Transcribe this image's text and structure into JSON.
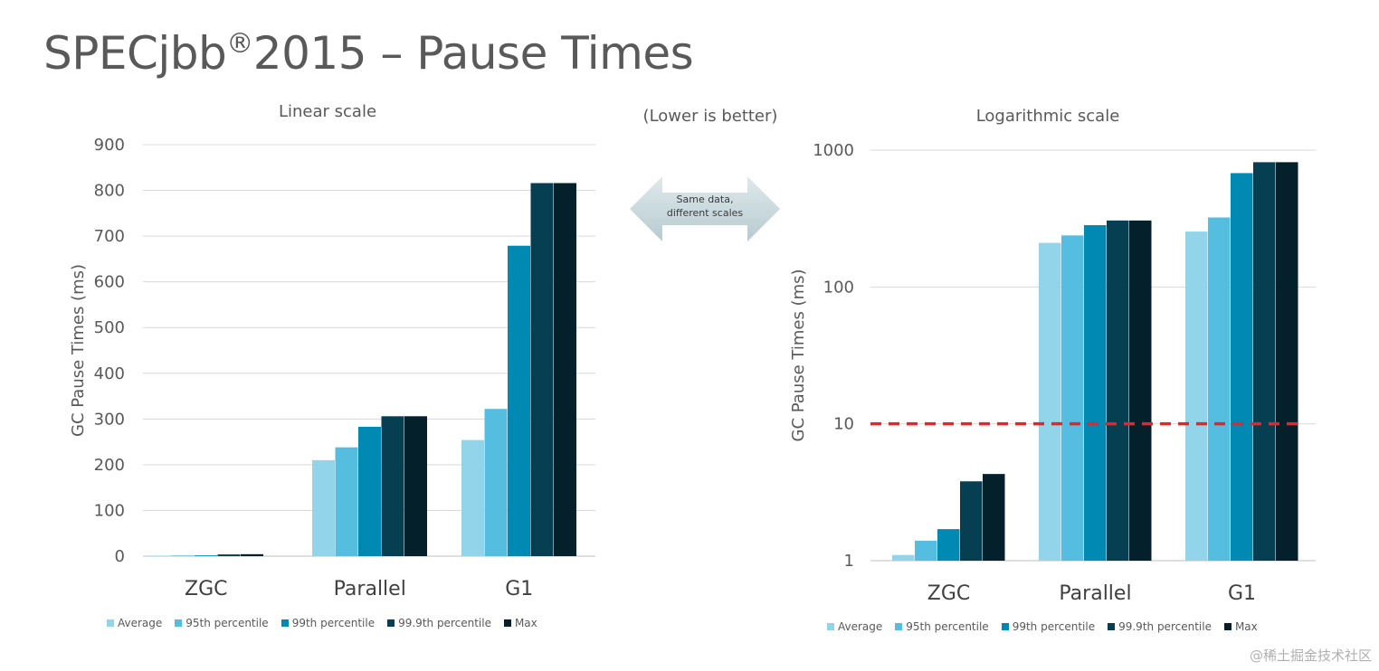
{
  "title": {
    "main": "SPECjbb",
    "reg": "®",
    "rest": "2015 – Pause Times"
  },
  "middle_note": "(Lower is better)",
  "arrow_text": {
    "line1": "Same data,",
    "line2": "different scales"
  },
  "watermark": "@稀土掘金技术社区",
  "colors": {
    "Average": "#92d5ea",
    "95th percentile": "#55bde0",
    "99th percentile": "#0089b3",
    "99.9th percentile": "#063e52",
    "Max": "#04202b",
    "gridline": "#d9d9d9",
    "threshold_line": "#e8242a",
    "arrow_fill": "#c8d8dc"
  },
  "chart_data": [
    {
      "type": "bar",
      "title": "Linear scale",
      "xlabel": "",
      "ylabel": "GC Pause Times (ms)",
      "categories": [
        "ZGC",
        "Parallel",
        "G1"
      ],
      "ylim": [
        0,
        900
      ],
      "yticks": [
        0,
        100,
        200,
        300,
        400,
        500,
        600,
        700,
        800,
        900
      ],
      "ytick_labels": [
        "0",
        "100",
        "200",
        "300",
        "400",
        "500",
        "600",
        "700",
        "800",
        "900"
      ],
      "scale": "linear",
      "grid": true,
      "legend_position": "bottom",
      "series": [
        {
          "name": "Average",
          "values": [
            1.1,
            210,
            254
          ]
        },
        {
          "name": "95th percentile",
          "values": [
            1.4,
            238,
            322
          ]
        },
        {
          "name": "99th percentile",
          "values": [
            1.7,
            283,
            679
          ]
        },
        {
          "name": "99.9th percentile",
          "values": [
            3.8,
            306,
            816
          ]
        },
        {
          "name": "Max",
          "values": [
            4.3,
            306,
            816
          ]
        }
      ]
    },
    {
      "type": "bar",
      "title": "Logarithmic scale",
      "xlabel": "",
      "ylabel": "GC Pause Times (ms)",
      "categories": [
        "ZGC",
        "Parallel",
        "G1"
      ],
      "ylim": [
        1,
        1000
      ],
      "yticks": [
        1,
        10,
        100,
        1000
      ],
      "ytick_labels": [
        "1",
        "10",
        "100",
        "1000"
      ],
      "scale": "log",
      "grid": true,
      "legend_position": "bottom",
      "threshold": {
        "value": 10,
        "style": "dashed"
      },
      "series": [
        {
          "name": "Average",
          "values": [
            1.1,
            210,
            254
          ]
        },
        {
          "name": "95th percentile",
          "values": [
            1.4,
            238,
            322
          ]
        },
        {
          "name": "99th percentile",
          "values": [
            1.7,
            283,
            679
          ]
        },
        {
          "name": "99.9th percentile",
          "values": [
            3.8,
            306,
            816
          ]
        },
        {
          "name": "Max",
          "values": [
            4.3,
            306,
            816
          ]
        }
      ]
    }
  ]
}
